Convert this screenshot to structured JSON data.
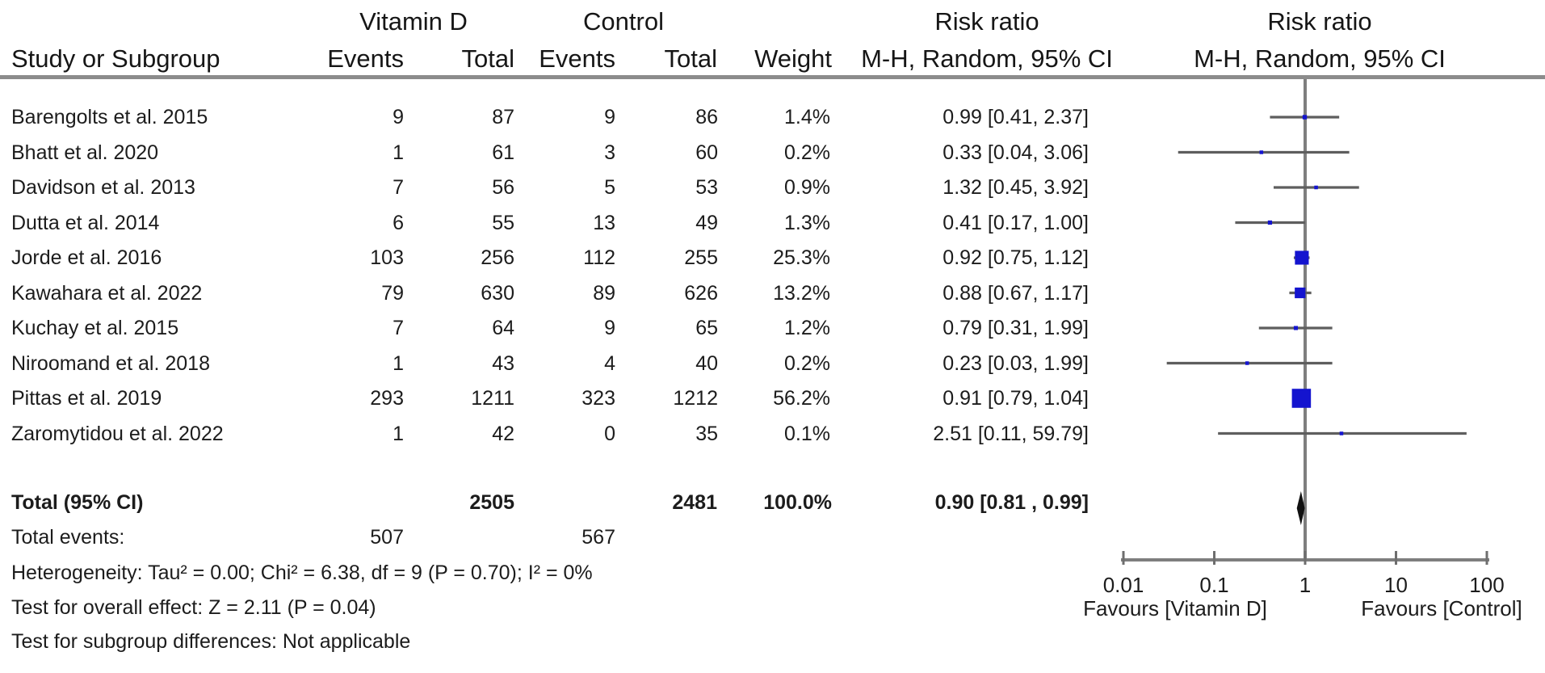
{
  "header": {
    "study_col": "Study or Subgroup",
    "group_treatment": "Vitamin D",
    "group_control": "Control",
    "events": "Events",
    "total": "Total",
    "weight": "Weight",
    "risk_ratio": "Risk ratio",
    "method": "M-H, Random, 95% CI"
  },
  "totals": {
    "label": "Total (95% CI)",
    "treatment_total": "2505",
    "control_total": "2481",
    "weight": "100.0%",
    "ci_label": "0.90 [0.81 , 0.99]",
    "events_row_label": "Total events:",
    "treatment_events": "507",
    "control_events": "567"
  },
  "footer": {
    "heterogeneity": "Heterogeneity: Tau² = 0.00; Chi² = 6.38, df = 9 (P = 0.70); I² = 0%",
    "overall_effect": "Test for overall effect: Z = 2.11 (P = 0.04)",
    "subgroup": "Test for subgroup differences: Not applicable"
  },
  "chart_data": {
    "type": "forest",
    "x_scale": "log10",
    "axis_ticks": [
      0.01,
      0.1,
      1,
      10,
      100
    ],
    "axis_range": [
      0.01,
      100
    ],
    "null_line": 1,
    "favours_left": "Favours [Vitamin D]",
    "favours_right": "Favours [Control]",
    "marker_color": "#1414cf",
    "line_color": "#5e5e5e",
    "diamond_color": "#111111",
    "summary": {
      "rr": 0.9,
      "lo": 0.81,
      "hi": 0.99,
      "label": "0.90 [0.81 , 0.99]"
    },
    "studies": [
      {
        "name": "Barengolts et al. 2015",
        "t_events": 9,
        "t_total": 87,
        "c_events": 9,
        "c_total": 86,
        "weight": 1.4,
        "weight_label": "1.4%",
        "rr": 0.99,
        "lo": 0.41,
        "hi": 2.37,
        "ci_label": "0.99 [0.41, 2.37]"
      },
      {
        "name": "Bhatt et al. 2020",
        "t_events": 1,
        "t_total": 61,
        "c_events": 3,
        "c_total": 60,
        "weight": 0.2,
        "weight_label": "0.2%",
        "rr": 0.33,
        "lo": 0.04,
        "hi": 3.06,
        "ci_label": "0.33 [0.04, 3.06]"
      },
      {
        "name": "Davidson et al. 2013",
        "t_events": 7,
        "t_total": 56,
        "c_events": 5,
        "c_total": 53,
        "weight": 0.9,
        "weight_label": "0.9%",
        "rr": 1.32,
        "lo": 0.45,
        "hi": 3.92,
        "ci_label": "1.32 [0.45, 3.92]"
      },
      {
        "name": "Dutta et al. 2014",
        "t_events": 6,
        "t_total": 55,
        "c_events": 13,
        "c_total": 49,
        "weight": 1.3,
        "weight_label": "1.3%",
        "rr": 0.41,
        "lo": 0.17,
        "hi": 1.0,
        "ci_label": "0.41 [0.17, 1.00]"
      },
      {
        "name": "Jorde et al. 2016",
        "t_events": 103,
        "t_total": 256,
        "c_events": 112,
        "c_total": 255,
        "weight": 25.3,
        "weight_label": "25.3%",
        "rr": 0.92,
        "lo": 0.75,
        "hi": 1.12,
        "ci_label": "0.92 [0.75, 1.12]"
      },
      {
        "name": "Kawahara et al. 2022",
        "t_events": 79,
        "t_total": 630,
        "c_events": 89,
        "c_total": 626,
        "weight": 13.2,
        "weight_label": "13.2%",
        "rr": 0.88,
        "lo": 0.67,
        "hi": 1.17,
        "ci_label": "0.88 [0.67, 1.17]"
      },
      {
        "name": "Kuchay et al. 2015",
        "t_events": 7,
        "t_total": 64,
        "c_events": 9,
        "c_total": 65,
        "weight": 1.2,
        "weight_label": "1.2%",
        "rr": 0.79,
        "lo": 0.31,
        "hi": 1.99,
        "ci_label": "0.79 [0.31, 1.99]"
      },
      {
        "name": "Niroomand et al. 2018",
        "t_events": 1,
        "t_total": 43,
        "c_events": 4,
        "c_total": 40,
        "weight": 0.2,
        "weight_label": "0.2%",
        "rr": 0.23,
        "lo": 0.03,
        "hi": 1.99,
        "ci_label": "0.23 [0.03, 1.99]"
      },
      {
        "name": "Pittas et al. 2019",
        "t_events": 293,
        "t_total": 1211,
        "c_events": 323,
        "c_total": 1212,
        "weight": 56.2,
        "weight_label": "56.2%",
        "rr": 0.91,
        "lo": 0.79,
        "hi": 1.04,
        "ci_label": "0.91 [0.79, 1.04]"
      },
      {
        "name": "Zaromytidou et al. 2022",
        "t_events": 1,
        "t_total": 42,
        "c_events": 0,
        "c_total": 35,
        "weight": 0.1,
        "weight_label": "0.1%",
        "rr": 2.51,
        "lo": 0.11,
        "hi": 59.79,
        "ci_label": "2.51 [0.11, 59.79]"
      }
    ]
  }
}
